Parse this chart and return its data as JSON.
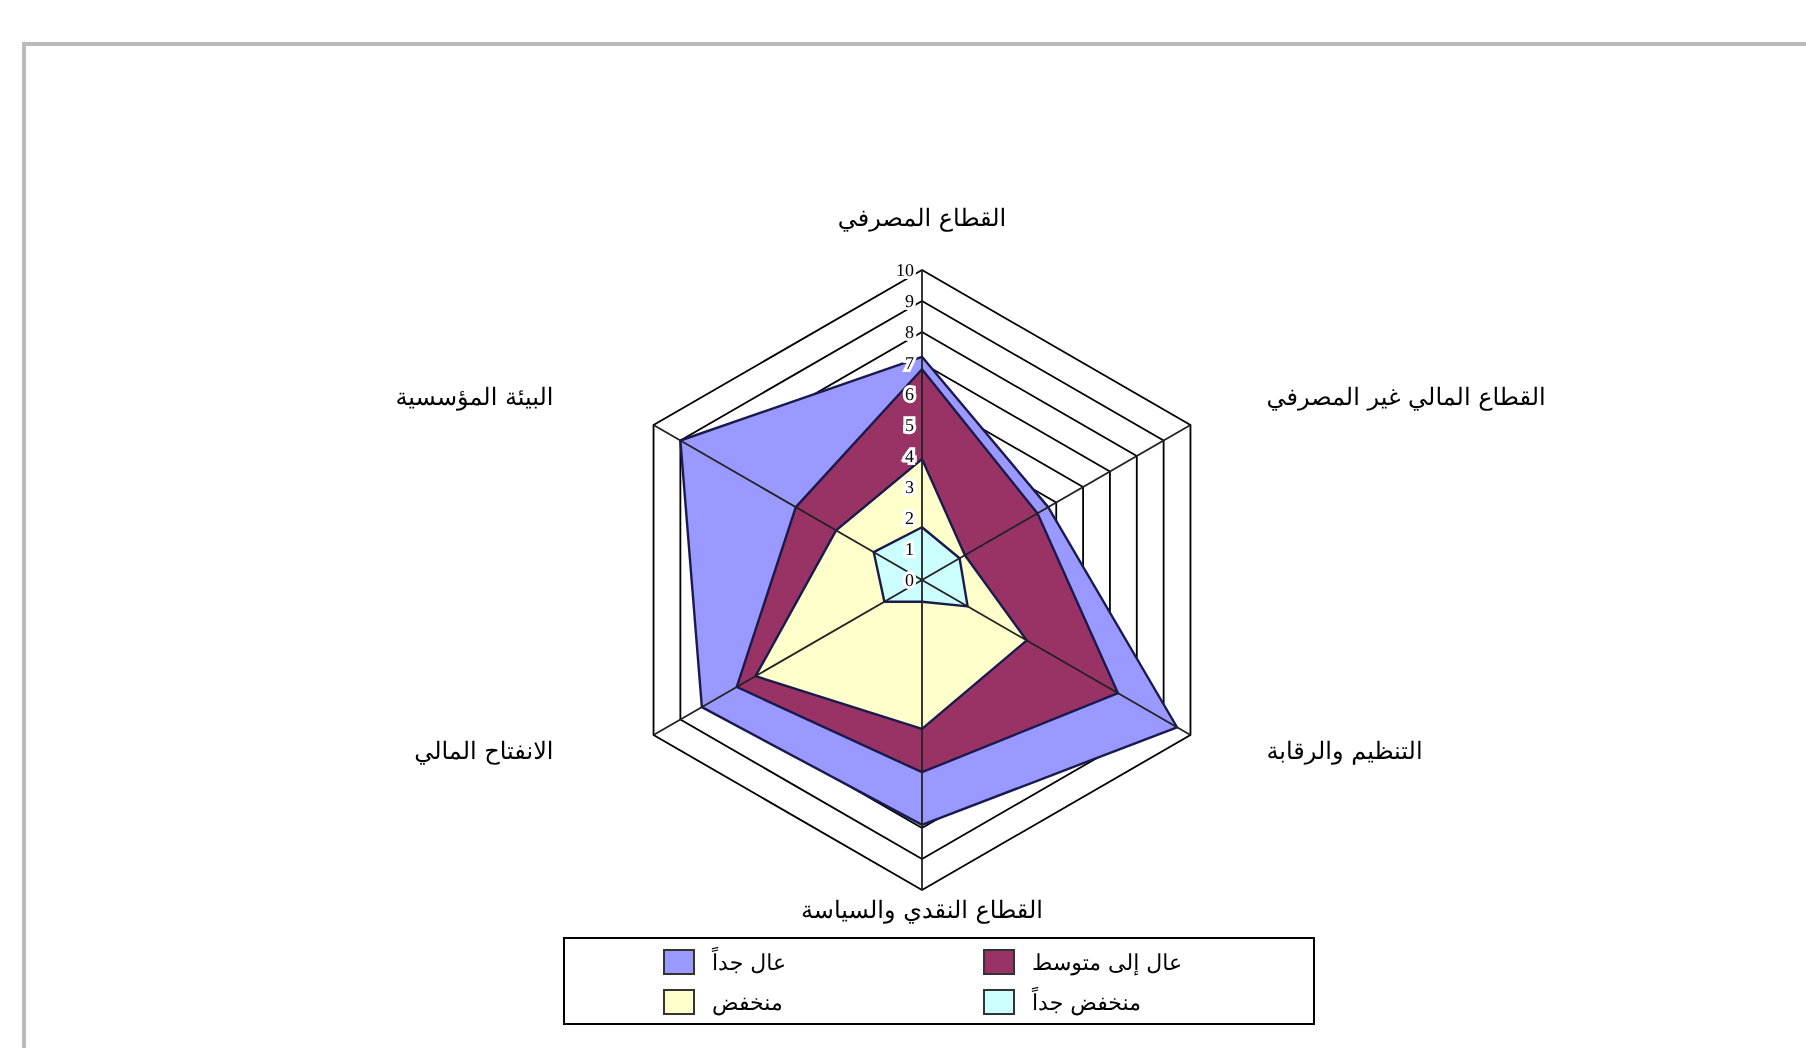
{
  "chart_data": {
    "type": "radar",
    "categories": [
      "القطاع المصرفي",
      "القطاع المالي غير المصرفي",
      "التنظيم والرقابة",
      "القطاع النقدي والسياسة",
      "الانفتاح المالي",
      "البيئة المؤسسية"
    ],
    "series": [
      {
        "name": "عال جداً",
        "color": "#9999ff",
        "values": [
          7.2,
          4.7,
          9.5,
          7.9,
          8.2,
          9.0
        ]
      },
      {
        "name": "عال إلى متوسط",
        "color": "#993366",
        "values": [
          6.8,
          4.3,
          7.3,
          6.2,
          6.9,
          4.7
        ]
      },
      {
        "name": "منخفض",
        "color": "#ffffcc",
        "values": [
          3.9,
          1.6,
          3.9,
          4.8,
          6.2,
          3.2
        ]
      },
      {
        "name": "منخفض جداً",
        "color": "#ccffff",
        "values": [
          1.7,
          1.4,
          1.7,
          0.7,
          1.4,
          1.8
        ]
      }
    ],
    "ylim": [
      0,
      10
    ],
    "yticks": [
      0,
      1,
      2,
      3,
      4,
      5,
      6,
      7,
      8,
      9,
      10
    ],
    "grid": true,
    "legend": "bottom"
  }
}
